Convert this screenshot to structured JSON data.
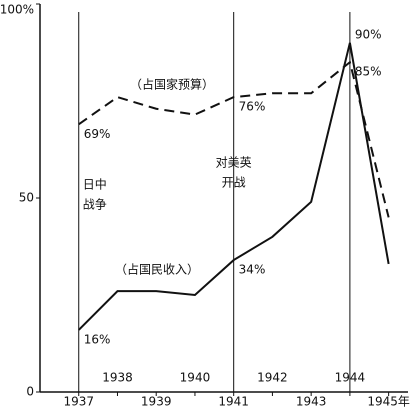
{
  "chart_data": {
    "type": "line",
    "x": [
      1937,
      1938,
      1939,
      1940,
      1941,
      1942,
      1943,
      1944,
      1945
    ],
    "series": [
      {
        "name": "（占国家预算）",
        "color": "#111111",
        "dash": true,
        "values": [
          69,
          76,
          73,
          71.5,
          76,
          77,
          77,
          85,
          45
        ],
        "value_labels": [
          "69%",
          null,
          null,
          null,
          "76%",
          null,
          null,
          "85%",
          null
        ]
      },
      {
        "name": "（占国民收入）",
        "color": "#111111",
        "dash": false,
        "values": [
          16,
          26,
          26,
          25,
          34,
          40,
          49,
          90,
          33
        ],
        "value_labels": [
          "16%",
          null,
          null,
          null,
          "34%",
          null,
          null,
          "90%",
          null
        ]
      }
    ],
    "annotations": [
      {
        "x": 1937,
        "lines": [
          "日中",
          "战争"
        ]
      },
      {
        "x": 1941,
        "lines": [
          "对美英",
          "开战"
        ]
      },
      {
        "x": 1944,
        "lines": []
      }
    ],
    "xlim": [
      1936,
      1945.5
    ],
    "xticks": [
      1937,
      1938,
      1939,
      1940,
      1941,
      1942,
      1943,
      1944,
      {
        "value": 1945,
        "label": "1945年"
      }
    ],
    "ylim": [
      0,
      100
    ],
    "yticks": [
      0,
      50,
      {
        "value": 100,
        "label": "100%"
      }
    ]
  }
}
